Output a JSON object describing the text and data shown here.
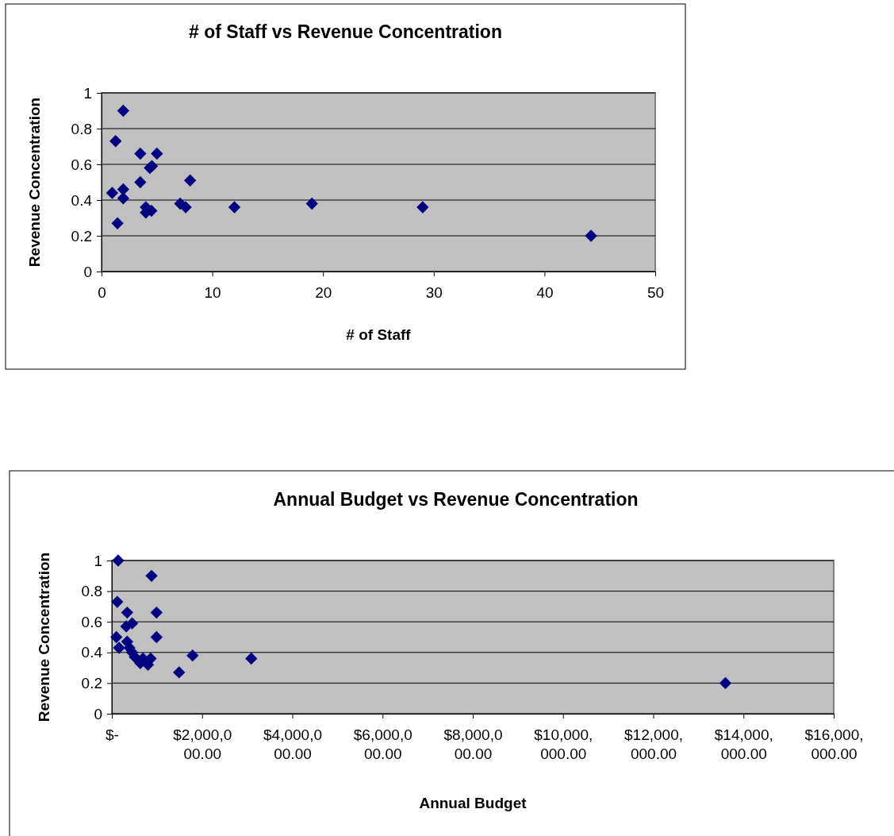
{
  "chart_data": [
    {
      "type": "scatter",
      "title": "# of Staff vs Revenue Concentration",
      "xlabel": "# of Staff",
      "ylabel": "Revenue Concentration",
      "xlim": [
        0,
        50
      ],
      "xticks": [
        0,
        10,
        20,
        30,
        40,
        50
      ],
      "ylim": [
        0,
        1
      ],
      "yticks": [
        0,
        0.2,
        0.4,
        0.6,
        0.8,
        1
      ],
      "grid": "y",
      "marker": "diamond",
      "legend": false,
      "series": [
        {
          "color": "#000080",
          "x": [
            1.96,
            1.27,
            3.5,
            5,
            4.55,
            4.36,
            3.5,
            8,
            0.96,
            1.96,
            1.96,
            1.44,
            4,
            4,
            4.5,
            7.1,
            7.6,
            12,
            19,
            29,
            44.2
          ],
          "values": [
            0.9,
            0.73,
            0.66,
            0.66,
            0.59,
            0.58,
            0.5,
            0.51,
            0.44,
            0.46,
            0.41,
            0.27,
            0.36,
            0.33,
            0.34,
            0.38,
            0.36,
            0.36,
            0.38,
            0.36,
            0.2
          ]
        }
      ]
    },
    {
      "type": "scatter",
      "title": "Annual Budget vs Revenue Concentration",
      "xlabel": "Annual Budget",
      "ylabel": "Revenue Concentration",
      "xlim": [
        0,
        16000000
      ],
      "xticks": [
        {
          "value": 0,
          "label": "$-"
        },
        {
          "value": 2000000,
          "label": "$2,000,000.00"
        },
        {
          "value": 4000000,
          "label": "$4,000,000.00"
        },
        {
          "value": 6000000,
          "label": "$6,000,000.00"
        },
        {
          "value": 8000000,
          "label": "$8,000,000.00"
        },
        {
          "value": 10000000,
          "label": "$10,000,000.00"
        },
        {
          "value": 12000000,
          "label": "$12,000,000.00"
        },
        {
          "value": 14000000,
          "label": "$14,000,000.00"
        },
        {
          "value": 16000000,
          "label": "$16,000,000.00"
        }
      ],
      "ylim": [
        0,
        1
      ],
      "yticks": [
        0,
        0.2,
        0.4,
        0.6,
        0.8,
        1
      ],
      "grid": "y",
      "marker": "diamond",
      "legend": false,
      "series": [
        {
          "color": "#000080",
          "x": [
            140000,
            880000,
            120000,
            340000,
            990000,
            320000,
            450000,
            100000,
            990000,
            160000,
            340000,
            390000,
            450000,
            510000,
            630000,
            690000,
            800000,
            860000,
            1490000,
            1790000,
            3090000,
            13600000
          ],
          "values": [
            1,
            0.9,
            0.73,
            0.66,
            0.66,
            0.57,
            0.59,
            0.5,
            0.5,
            0.43,
            0.47,
            0.43,
            0.4,
            0.37,
            0.33,
            0.36,
            0.32,
            0.36,
            0.27,
            0.38,
            0.36,
            0.2
          ]
        }
      ]
    }
  ]
}
